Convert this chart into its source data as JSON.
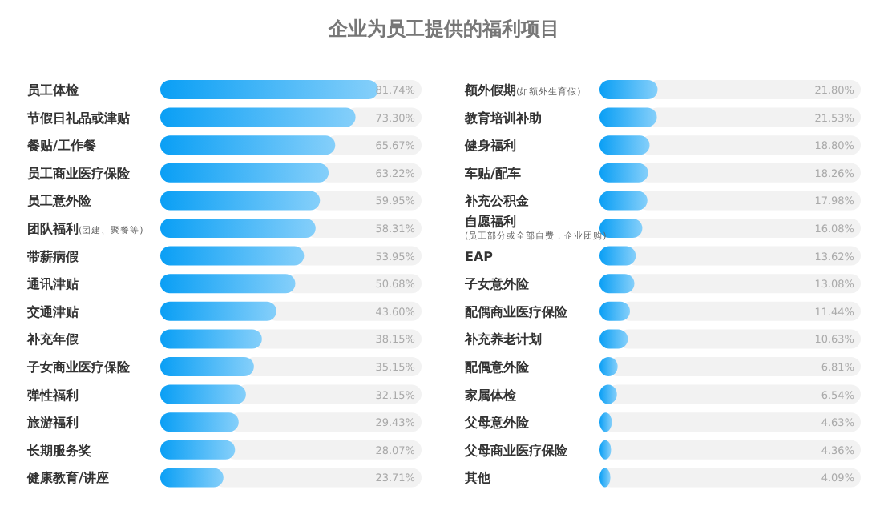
{
  "chart_data": [
    {
      "type": "bar",
      "orientation": "horizontal",
      "title": "企业为员工提供的福利项目",
      "categories": [
        "员工体检",
        "节假日礼品或津贴",
        "餐贴/工作餐",
        "员工商业医疗保险",
        "员工意外险",
        "团队福利$_{(团建、聚餐等)}$",
        "带薪病假",
        "通讯津贴",
        "交通津贴",
        "补充年假",
        "子女商业医疗保险",
        "弹性福利",
        "旅游福利",
        "长期服务奖",
        "健康教育/讲座"
      ],
      "values": [
        81.74,
        73.3,
        65.67,
        63.22,
        59.95,
        58.31,
        53.95,
        50.68,
        43.6,
        38.15,
        35.15,
        32.15,
        29.43,
        28.07,
        23.71
      ],
      "value_labels": [
        "81.74%",
        "73.30%",
        "65.67%",
        "63.22%",
        "59.95%",
        "58.31%",
        "53.95%",
        "50.68%",
        "43.60%",
        "38.15%",
        "35.15%",
        "32.15%",
        "29.43%",
        "28.07%",
        "23.71%"
      ],
      "color": "#0a9ff5"
    },
    {
      "type": "bar",
      "orientation": "horizontal",
      "categories": [
        "额外假期$_{(如额外生育假)}$",
        "教育培训补助",
        "健身福利",
        "车贴/配车",
        "补充公积金",
        "自愿福利$_{(员工部分或全部自费，企业团购)}$",
        "EAP",
        "子女意外险",
        "配偶商业医疗保险",
        "补充养老计划",
        "配偶意外险",
        "家属体检",
        "父母意外险",
        "父母商业医疗保险",
        "其他"
      ],
      "values": [
        21.8,
        21.53,
        18.8,
        18.26,
        17.98,
        16.08,
        13.62,
        13.08,
        11.44,
        10.63,
        6.81,
        6.54,
        4.63,
        4.36,
        4.09
      ],
      "value_labels": [
        "21.80%",
        "21.53%",
        "18.80%",
        "18.26%",
        "17.98%",
        "16.08%",
        "13.62%",
        "13.08%",
        "11.44%",
        "10.63%",
        "6.81%",
        "6.54%",
        "4.63%",
        "4.36%",
        "4.09%"
      ],
      "color": "#0a9ff5"
    }
  ]
}
